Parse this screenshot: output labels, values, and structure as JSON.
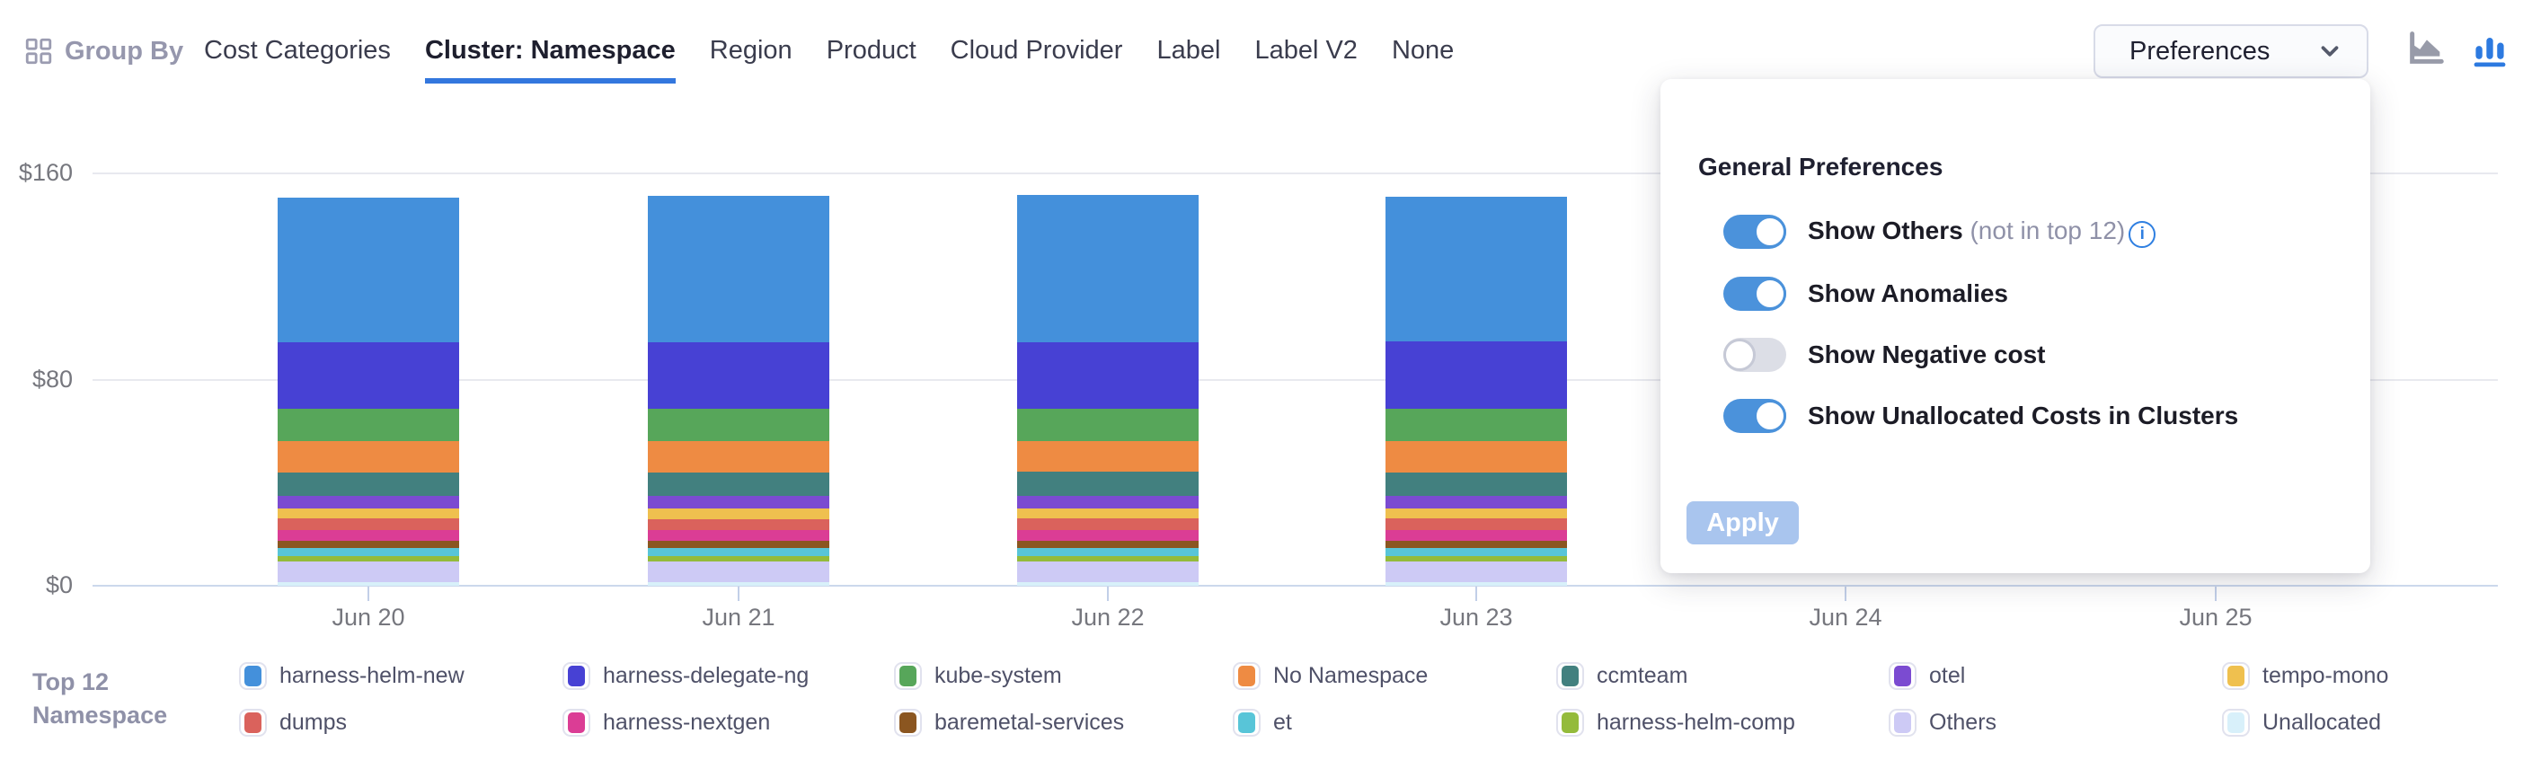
{
  "header": {
    "group_by_label": "Group By",
    "tabs": [
      {
        "label": "Cost Categories",
        "active": false
      },
      {
        "label": "Cluster: Namespace",
        "active": true
      },
      {
        "label": "Region",
        "active": false
      },
      {
        "label": "Product",
        "active": false
      },
      {
        "label": "Cloud Provider",
        "active": false
      },
      {
        "label": "Label",
        "active": false
      },
      {
        "label": "Label V2",
        "active": false
      },
      {
        "label": "None",
        "active": false
      }
    ],
    "preferences_button": "Preferences",
    "chart_type_icons": [
      {
        "name": "area-chart-icon",
        "active": false,
        "color": "#989ba9"
      },
      {
        "name": "bar-chart-icon",
        "active": true,
        "color": "#2d7ae0"
      }
    ]
  },
  "preferences_panel": {
    "title": "General Preferences",
    "toggles": [
      {
        "label": "Show Others",
        "suffix": "(not in top 12)",
        "info_icon": true,
        "on": true
      },
      {
        "label": "Show Anomalies",
        "suffix": "",
        "info_icon": false,
        "on": true
      },
      {
        "label": "Show Negative cost",
        "suffix": "",
        "info_icon": false,
        "on": false
      },
      {
        "label": "Show Unallocated Costs in Clusters",
        "suffix": "",
        "info_icon": false,
        "on": true
      }
    ],
    "apply_label": "Apply"
  },
  "legend": {
    "title_line1": "Top 12",
    "title_line2": "Namespace"
  },
  "colors": {
    "accent_blue": "#3377de",
    "toggle_on": "#4b92db",
    "apply_disabled": "#a9c5ee"
  },
  "chart_data": {
    "type": "bar",
    "stacked": true,
    "x": [
      "Jun 20",
      "Jun 21",
      "Jun 22",
      "Jun 23",
      "Jun 24",
      "Jun 25"
    ],
    "ytick_values": [
      0,
      80,
      160
    ],
    "ytick_labels": [
      "$0",
      "$80",
      "$160"
    ],
    "ylim": [
      0,
      160
    ],
    "grid": true,
    "legend_position": "bottom",
    "series": [
      {
        "name": "harness-helm-new",
        "color": "#4490db",
        "values": [
          56.2,
          56.6,
          56.9,
          56.3,
          0,
          0
        ]
      },
      {
        "name": "harness-delegate-ng",
        "color": "#4741d4",
        "values": [
          25.9,
          26.1,
          26.0,
          26.2,
          0,
          0
        ]
      },
      {
        "name": "kube-system",
        "color": "#57a65a",
        "values": [
          12.5,
          12.4,
          12.6,
          12.5,
          0,
          0
        ]
      },
      {
        "name": "No Namespace",
        "color": "#ee8b43",
        "values": [
          12.0,
          12.1,
          11.9,
          12.0,
          0,
          0
        ]
      },
      {
        "name": "ccmteam",
        "color": "#42807f",
        "values": [
          9.0,
          9.0,
          9.1,
          9.0,
          0,
          0
        ]
      },
      {
        "name": "otel",
        "color": "#7b4bd1",
        "values": [
          5.0,
          5.0,
          5.0,
          5.0,
          0,
          0
        ]
      },
      {
        "name": "tempo-mono",
        "color": "#efc04f",
        "values": [
          4.0,
          4.1,
          4.0,
          4.0,
          0,
          0
        ]
      },
      {
        "name": "dumps",
        "color": "#da625c",
        "values": [
          4.5,
          4.4,
          4.5,
          4.5,
          0,
          0
        ]
      },
      {
        "name": "harness-nextgen",
        "color": "#db3d95",
        "values": [
          4.0,
          4.0,
          4.0,
          4.0,
          0,
          0
        ]
      },
      {
        "name": "baremetal-services",
        "color": "#8b5620",
        "values": [
          3.0,
          3.0,
          3.0,
          3.0,
          0,
          0
        ]
      },
      {
        "name": "et",
        "color": "#58c5d8",
        "values": [
          3.0,
          3.0,
          3.0,
          3.0,
          0,
          0
        ]
      },
      {
        "name": "harness-helm-comp",
        "color": "#94bb3b",
        "values": [
          2.0,
          2.0,
          2.0,
          2.0,
          0,
          0
        ]
      },
      {
        "name": "Others",
        "color": "#cdcaf5",
        "values": [
          8.0,
          8.0,
          8.0,
          8.0,
          0,
          0
        ]
      },
      {
        "name": "Unallocated",
        "color": "#d8f0fa",
        "values": [
          1.5,
          1.5,
          1.5,
          1.5,
          0,
          0
        ]
      }
    ]
  }
}
